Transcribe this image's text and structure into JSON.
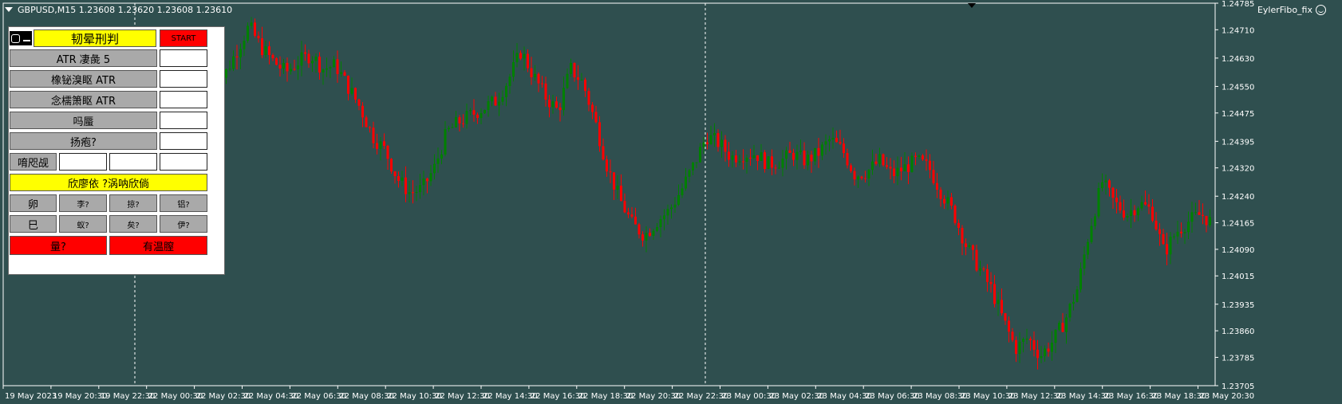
{
  "header": {
    "symbol_line": "GBPUSD,M15  1.23608 1.23620 1.23608 1.23610",
    "indicator_label": "EylerFibo_fix"
  },
  "panel": {
    "title": "韧晕刑判",
    "start_label": "START",
    "rows": [
      {
        "label": "ATR 凄彘 5"
      },
      {
        "label": "橡铋溴眍 ATR"
      },
      {
        "label": "念檽箫眍 ATR"
      },
      {
        "label": "吗蜃"
      },
      {
        "label": "扬疱?"
      }
    ],
    "triple_label": "唷咫觇",
    "mode_label": "欣廖依 ?涡呐欣倘",
    "grid_row1": [
      "卵",
      "李?",
      "掠?",
      "铝?"
    ],
    "grid_row2": [
      "巳",
      "蚁?",
      "矣?",
      "伊?"
    ],
    "bottom_left": "量?",
    "bottom_right": "有温膣"
  },
  "axis": {
    "y_ticks": [
      "1.24785",
      "1.24710",
      "1.24630",
      "1.24550",
      "1.24475",
      "1.24395",
      "1.24320",
      "1.24240",
      "1.24165",
      "1.24090",
      "1.24015",
      "1.23935",
      "1.23860",
      "1.23785",
      "1.23705"
    ],
    "x_ticks": [
      "19 May 2023",
      "19 May 20:30",
      "19 May 22:30",
      "22 May 00:30",
      "22 May 02:30",
      "22 May 04:30",
      "22 May 06:30",
      "22 May 08:30",
      "22 May 10:30",
      "22 May 12:30",
      "22 May 14:30",
      "22 May 16:30",
      "22 May 18:30",
      "22 May 20:30",
      "22 May 22:30",
      "23 May 00:30",
      "23 May 02:30",
      "23 May 04:30",
      "23 May 06:30",
      "23 May 08:30",
      "23 May 10:30",
      "23 May 12:30",
      "23 May 14:30",
      "23 May 16:30",
      "23 May 18:30",
      "23 May 20:30"
    ]
  },
  "colors": {
    "background": "#2f4f4f",
    "bull": "#008000",
    "bear": "#ff0000",
    "panel_yellow": "#ffff00",
    "panel_red": "#ff0000",
    "panel_gray": "#a9a9a9"
  },
  "chart_data": {
    "type": "candlestick",
    "symbol": "GBPUSD",
    "timeframe": "M15",
    "ylim": [
      1.23705,
      1.24785
    ],
    "last_quote": {
      "open": 1.23608,
      "high": 1.2362,
      "low": 1.23608,
      "close": 1.2361
    },
    "close_path": [
      1.2457,
      1.2458,
      1.2465,
      1.2472,
      1.2466,
      1.2462,
      1.2459,
      1.2462,
      1.2464,
      1.246,
      1.2461,
      1.2455,
      1.2449,
      1.2441,
      1.2437,
      1.2429,
      1.2425,
      1.2426,
      1.2432,
      1.2442,
      1.2445,
      1.2447,
      1.2449,
      1.2451,
      1.2457,
      1.2465,
      1.2458,
      1.2452,
      1.2448,
      1.246,
      1.2456,
      1.2445,
      1.2432,
      1.2423,
      1.2416,
      1.2413,
      1.2417,
      1.242,
      1.2426,
      1.2433,
      1.2441,
      1.2439,
      1.2435,
      1.2436,
      1.2436,
      1.2433,
      1.2434,
      1.2436,
      1.2434,
      1.2436,
      1.244,
      1.2437,
      1.243,
      1.2431,
      1.2434,
      1.243,
      1.2432,
      1.2434,
      1.2432,
      1.2425,
      1.2419,
      1.241,
      1.2404,
      1.2398,
      1.2389,
      1.2381,
      1.2384,
      1.2379,
      1.2383,
      1.2389,
      1.2398,
      1.2415,
      1.2428,
      1.2422,
      1.2419,
      1.2422,
      1.242,
      1.2408,
      1.2414,
      1.2417,
      1.2419,
      1.2416
    ]
  }
}
